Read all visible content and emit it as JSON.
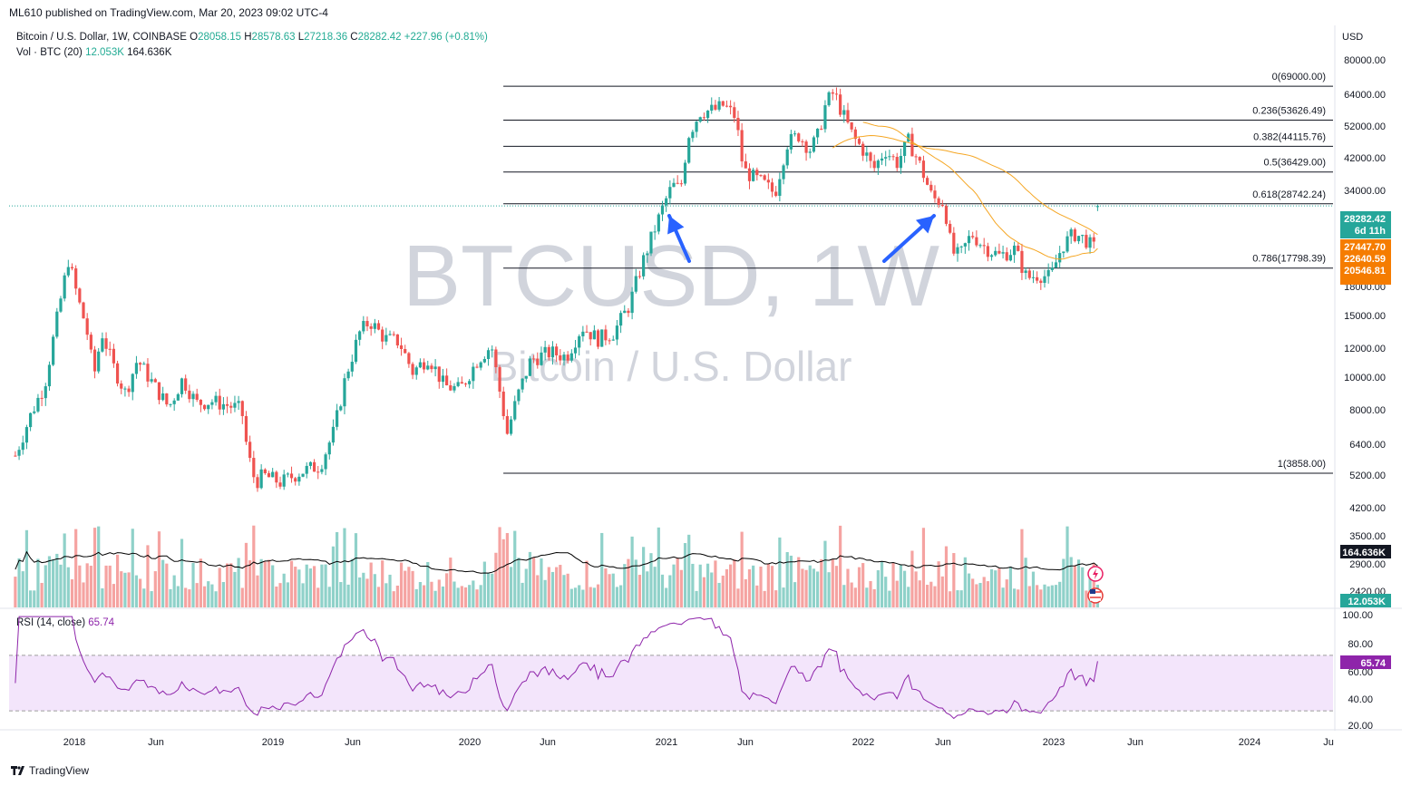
{
  "header": {
    "publish_line": "ML610 published on TradingView.com, Mar 20, 2023 09:02 UTC-4"
  },
  "legend": {
    "symbol": "Bitcoin / U.S. Dollar, 1W, COINBASE",
    "o_label": "O",
    "o_value": "28058.15",
    "h_label": "H",
    "h_value": "28578.63",
    "l_label": "L",
    "l_value": "27218.36",
    "c_label": "C",
    "c_value": "28282.42",
    "change": "+227.96 (+0.81%)",
    "vol_label": "Vol · BTC (20)",
    "vol_value": "12.053K",
    "vol_ma_value": "164.636K",
    "rsi_label": "RSI (14, close)",
    "rsi_value": "65.74"
  },
  "watermark": {
    "line1": "BTCUSD, 1W",
    "line2": "Bitcoin / U.S. Dollar"
  },
  "footer": {
    "brand": "TradingView"
  },
  "colors": {
    "up": "#26a69a",
    "down": "#ef5350",
    "vol_up": "#8fd1c9",
    "vol_down": "#f5a3a1",
    "ma": "#f5a623",
    "vol_ma": "#000000",
    "rsi_line": "#8e24aa",
    "rsi_band": "#f3e5fb",
    "arrow": "#2962ff",
    "price_badge": "#26a69a",
    "ma_badge": "#f57c00"
  },
  "chart_data": {
    "type": "candlestick",
    "timeframe": "1W",
    "y_scale": "log",
    "y_axis_unit": "USD",
    "price_ticks": [
      "80000.00",
      "64000.00",
      "52000.00",
      "42000.00",
      "34000.00",
      "22000.00",
      "18000.00",
      "15000.00",
      "12000.00",
      "10000.00",
      "8000.00",
      "6400.00",
      "5200.00",
      "4200.00",
      "3500.00",
      "2900.00",
      "2420.00"
    ],
    "rsi_ticks": [
      "100.00",
      "80.00",
      "60.00",
      "40.00",
      "20.00"
    ],
    "x_ticks": [
      "2018",
      "Jun",
      "2019",
      "Jun",
      "2020",
      "Jun",
      "2021",
      "Jun",
      "2022",
      "Jun",
      "2023",
      "Jun",
      "2024",
      "Ju"
    ],
    "fib_levels": [
      {
        "label": "0(69000.00)",
        "price": 69000
      },
      {
        "label": "0.236(53626.49)",
        "price": 53626.49
      },
      {
        "label": "0.382(44115.76)",
        "price": 44115.76
      },
      {
        "label": "0.5(36429.00)",
        "price": 36429
      },
      {
        "label": "0.618(28742.24)",
        "price": 28742.24
      },
      {
        "label": "0.786(17798.39)",
        "price": 17798.39
      },
      {
        "label": "1(3858.00)",
        "price": 3858
      }
    ],
    "last_price_badge": {
      "value": "28282.42",
      "countdown": "6d 11h"
    },
    "ma_badges": [
      "27447.70",
      "22640.59",
      "20546.81"
    ],
    "vol_badges": [
      "164.636K",
      "12.053K"
    ],
    "rsi_badge": "65.74",
    "rsi_levels": [
      70,
      30
    ],
    "price_path": [
      [
        2017.7,
        4400
      ],
      [
        2017.78,
        6000
      ],
      [
        2017.85,
        7500
      ],
      [
        2017.92,
        13000
      ],
      [
        2017.97,
        19000
      ],
      [
        2018.02,
        14000
      ],
      [
        2018.06,
        11500
      ],
      [
        2018.1,
        8000
      ],
      [
        2018.14,
        11000
      ],
      [
        2018.2,
        8500
      ],
      [
        2018.26,
        7000
      ],
      [
        2018.32,
        9000
      ],
      [
        2018.4,
        7500
      ],
      [
        2018.48,
        6300
      ],
      [
        2018.55,
        7800
      ],
      [
        2018.62,
        6500
      ],
      [
        2018.7,
        6600
      ],
      [
        2018.78,
        6400
      ],
      [
        2018.85,
        6200
      ],
      [
        2018.88,
        4500
      ],
      [
        2018.92,
        3600
      ],
      [
        2018.96,
        3800
      ],
      [
        2019.05,
        3600
      ],
      [
        2019.15,
        3900
      ],
      [
        2019.25,
        4100
      ],
      [
        2019.32,
        5300
      ],
      [
        2019.38,
        8000
      ],
      [
        2019.45,
        11000
      ],
      [
        2019.5,
        12000
      ],
      [
        2019.58,
        10500
      ],
      [
        2019.65,
        10300
      ],
      [
        2019.72,
        8200
      ],
      [
        2019.8,
        9200
      ],
      [
        2019.88,
        7400
      ],
      [
        2019.96,
        7200
      ],
      [
        2020.05,
        9000
      ],
      [
        2020.12,
        10000
      ],
      [
        2020.2,
        5200
      ],
      [
        2020.25,
        6800
      ],
      [
        2020.32,
        9000
      ],
      [
        2020.42,
        9500
      ],
      [
        2020.5,
        9200
      ],
      [
        2020.58,
        11500
      ],
      [
        2020.66,
        10500
      ],
      [
        2020.74,
        11000
      ],
      [
        2020.82,
        13500
      ],
      [
        2020.88,
        18000
      ],
      [
        2020.94,
        23000
      ],
      [
        2021.0,
        29000
      ],
      [
        2021.04,
        33000
      ],
      [
        2021.08,
        32000
      ],
      [
        2021.12,
        48000
      ],
      [
        2021.18,
        57000
      ],
      [
        2021.26,
        58000
      ],
      [
        2021.3,
        60000
      ],
      [
        2021.36,
        55000
      ],
      [
        2021.4,
        37000
      ],
      [
        2021.45,
        35000
      ],
      [
        2021.5,
        33500
      ],
      [
        2021.56,
        31000
      ],
      [
        2021.62,
        45000
      ],
      [
        2021.68,
        48000
      ],
      [
        2021.74,
        43000
      ],
      [
        2021.78,
        48000
      ],
      [
        2021.82,
        61000
      ],
      [
        2021.86,
        66000
      ],
      [
        2021.9,
        57000
      ],
      [
        2021.96,
        47000
      ],
      [
        2022.02,
        42000
      ],
      [
        2022.06,
        37000
      ],
      [
        2022.12,
        43000
      ],
      [
        2022.18,
        39000
      ],
      [
        2022.24,
        46000
      ],
      [
        2022.3,
        38000
      ],
      [
        2022.36,
        30000
      ],
      [
        2022.42,
        29000
      ],
      [
        2022.46,
        20000
      ],
      [
        2022.5,
        19500
      ],
      [
        2022.56,
        23000
      ],
      [
        2022.62,
        21000
      ],
      [
        2022.7,
        19500
      ],
      [
        2022.78,
        20500
      ],
      [
        2022.84,
        16500
      ],
      [
        2022.9,
        17000
      ],
      [
        2022.96,
        16600
      ],
      [
        2023.02,
        21000
      ],
      [
        2023.08,
        23000
      ],
      [
        2023.14,
        22000
      ],
      [
        2023.18,
        20500
      ],
      [
        2023.21,
        28282
      ]
    ]
  }
}
